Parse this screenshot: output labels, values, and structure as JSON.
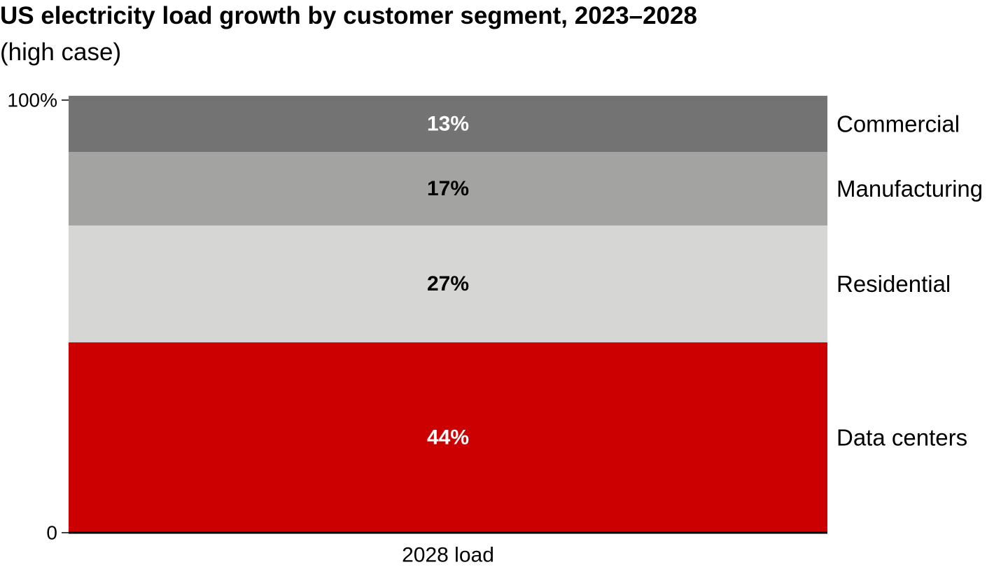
{
  "chart_data": {
    "type": "bar",
    "stacked": true,
    "title": "US electricity load growth by customer segment, 2023–2028",
    "subtitle": "(high case)",
    "categories": [
      "2028 load"
    ],
    "ylim": [
      0,
      100
    ],
    "yticks": [
      {
        "value": 0,
        "label": "0"
      },
      {
        "value": 100,
        "label": "100%"
      }
    ],
    "series": [
      {
        "name": "Data centers",
        "values": [
          44
        ],
        "label": "44%",
        "color": "#cc0000",
        "label_color": "#ffffff"
      },
      {
        "name": "Residential",
        "values": [
          27
        ],
        "label": "27%",
        "color": "#d6d6d4",
        "label_color": "#000000"
      },
      {
        "name": "Manufacturing",
        "values": [
          17
        ],
        "label": "17%",
        "color": "#a3a3a1",
        "label_color": "#000000"
      },
      {
        "name": "Commercial",
        "values": [
          13
        ],
        "label": "13%",
        "color": "#737373",
        "label_color": "#ffffff"
      }
    ],
    "grid": false,
    "legend_position": "right"
  }
}
